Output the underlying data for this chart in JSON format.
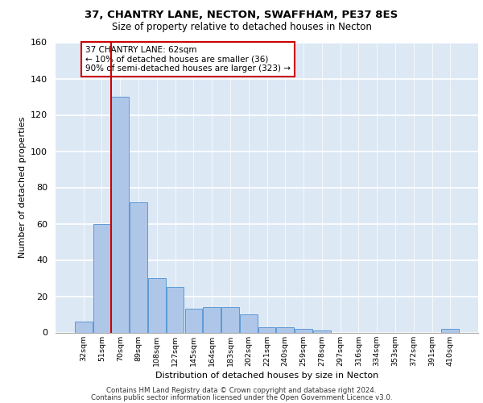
{
  "title_line1": "37, CHANTRY LANE, NECTON, SWAFFHAM, PE37 8ES",
  "title_line2": "Size of property relative to detached houses in Necton",
  "xlabel": "Distribution of detached houses by size in Necton",
  "ylabel": "Number of detached properties",
  "bar_categories": [
    "32sqm",
    "51sqm",
    "70sqm",
    "89sqm",
    "108sqm",
    "127sqm",
    "145sqm",
    "164sqm",
    "183sqm",
    "202sqm",
    "221sqm",
    "240sqm",
    "259sqm",
    "278sqm",
    "297sqm",
    "316sqm",
    "334sqm",
    "353sqm",
    "372sqm",
    "391sqm",
    "410sqm"
  ],
  "bar_values": [
    6,
    60,
    130,
    72,
    30,
    25,
    13,
    14,
    14,
    10,
    3,
    3,
    2,
    1,
    0,
    0,
    0,
    0,
    0,
    0,
    2
  ],
  "bar_color": "#aec6e8",
  "bar_edge_color": "#5b9bd5",
  "background_color": "#dde8f5",
  "grid_color": "#ffffff",
  "vline_color": "#cc0000",
  "annotation_box_text": "37 CHANTRY LANE: 62sqm\n← 10% of detached houses are smaller (36)\n90% of semi-detached houses are larger (323) →",
  "annotation_box_color": "#cc0000",
  "ylim": [
    0,
    160
  ],
  "yticks": [
    0,
    20,
    40,
    60,
    80,
    100,
    120,
    140,
    160
  ],
  "footer_line1": "Contains HM Land Registry data © Crown copyright and database right 2024.",
  "footer_line2": "Contains public sector information licensed under the Open Government Licence v3.0."
}
